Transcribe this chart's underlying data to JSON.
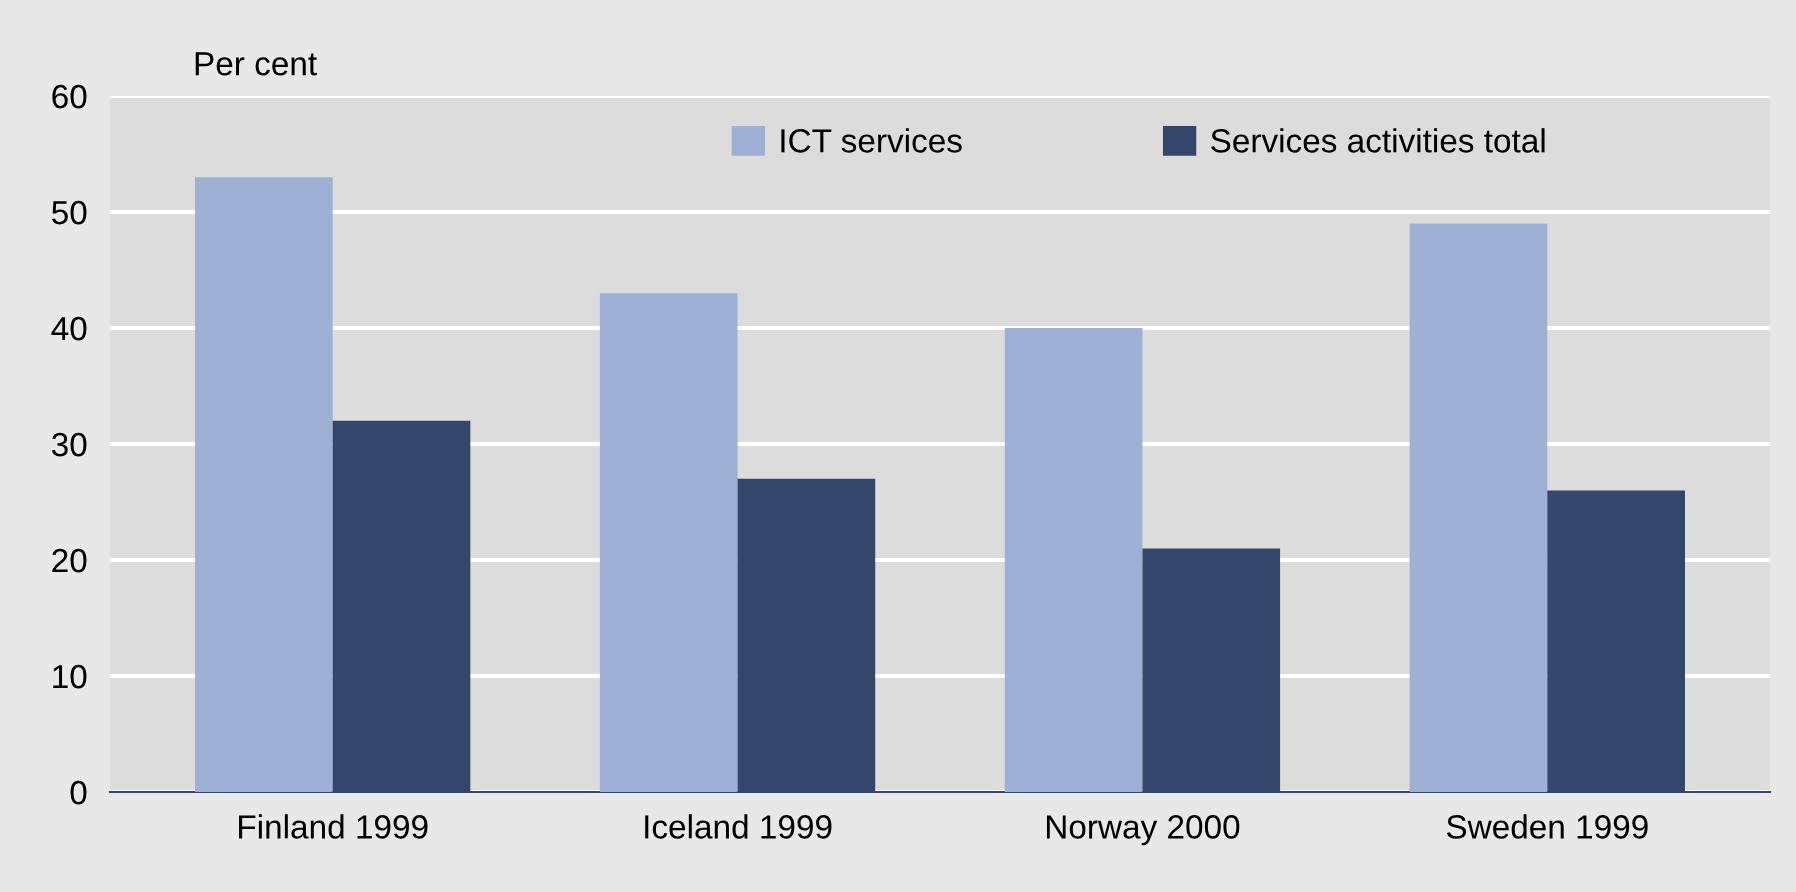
{
  "chart_data": {
    "type": "bar",
    "ylabel": "Per cent",
    "categories": [
      "Finland 1999",
      "Iceland 1999",
      "Norway 2000",
      "Sweden 1999"
    ],
    "series": [
      {
        "name": "ICT services",
        "color": "#9eb1d5",
        "values": [
          53,
          43,
          40,
          49
        ]
      },
      {
        "name": "Services activities total",
        "color": "#344669",
        "values": [
          32,
          27,
          21,
          26
        ]
      }
    ],
    "ylim": [
      0,
      60
    ],
    "yticks": [
      0,
      10,
      20,
      30,
      40,
      50,
      60
    ],
    "grid": "y",
    "legend": "top"
  }
}
